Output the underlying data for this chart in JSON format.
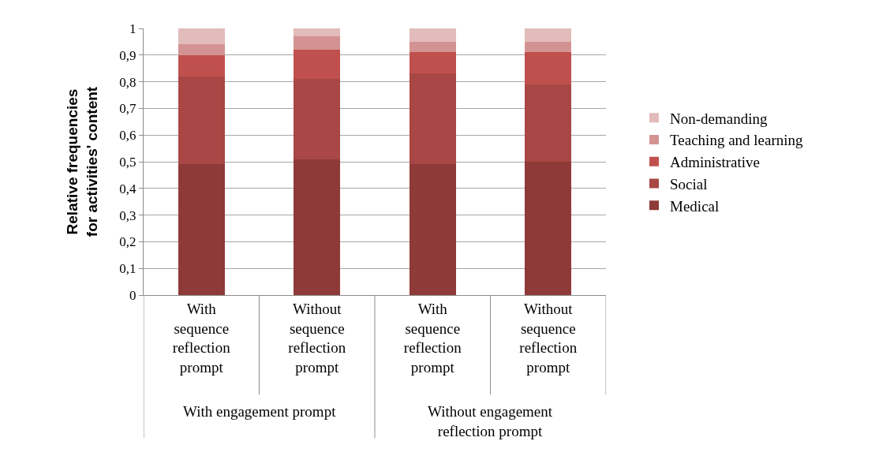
{
  "chart_data": {
    "type": "bar",
    "stacked": true,
    "ylabel": "Relative frequencies for activities' content",
    "categories": [
      "With sequence reflection prompt",
      "Without sequence reflection prompt",
      "With sequence reflection prompt",
      "Without sequence reflection prompt"
    ],
    "annotations": [
      "With engagement prompt",
      "Without engagement reflection prompt"
    ],
    "series": [
      {
        "name": "Medical",
        "color": "#8e3a38",
        "values": [
          0.49,
          0.51,
          0.49,
          0.5
        ]
      },
      {
        "name": "Social",
        "color": "#a84745",
        "values": [
          0.33,
          0.3,
          0.34,
          0.29
        ]
      },
      {
        "name": "Administrative",
        "color": "#c0504d",
        "values": [
          0.08,
          0.11,
          0.08,
          0.12
        ]
      },
      {
        "name": "Teaching and learning",
        "color": "#d39392",
        "values": [
          0.04,
          0.05,
          0.04,
          0.04
        ]
      },
      {
        "name": "Non-demanding",
        "color": "#e2bbbb",
        "values": [
          0.06,
          0.03,
          0.05,
          0.05
        ]
      }
    ],
    "ylim": [
      0,
      1
    ],
    "yticks": [
      0,
      {
        "value": 0.1,
        "label": "0,1"
      },
      {
        "value": 0.2,
        "label": "0,2"
      },
      {
        "value": 0.3,
        "label": "0,3"
      },
      {
        "value": 0.4,
        "label": "0,4"
      },
      {
        "value": 0.5,
        "label": "0,5"
      },
      {
        "value": 0.6,
        "label": "0,6"
      },
      {
        "value": 0.7,
        "label": "0,7"
      },
      {
        "value": 0.8,
        "label": "0,8"
      },
      {
        "value": 0.9,
        "label": "0,9"
      },
      1
    ],
    "grid": "y",
    "legend": "right"
  }
}
